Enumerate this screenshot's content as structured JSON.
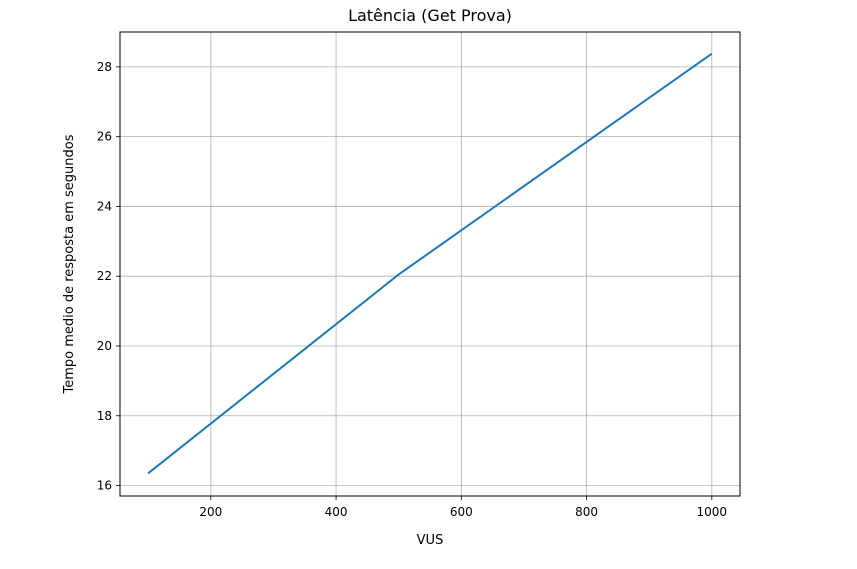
{
  "chart_data": {
    "type": "line",
    "title": "Latência (Get Prova)",
    "xlabel": "VUS",
    "ylabel": "Tempo medio de resposta em segundos",
    "xlim": [
      55,
      1045
    ],
    "ylim": [
      15.7,
      29.0
    ],
    "xticks": [
      200,
      400,
      600,
      800,
      1000
    ],
    "yticks": [
      16,
      18,
      20,
      22,
      24,
      26,
      28
    ],
    "grid": true,
    "series": [
      {
        "color": "#1f77b4",
        "x": [
          100,
          500,
          1000
        ],
        "y": [
          16.35,
          22.05,
          28.38
        ]
      }
    ]
  }
}
